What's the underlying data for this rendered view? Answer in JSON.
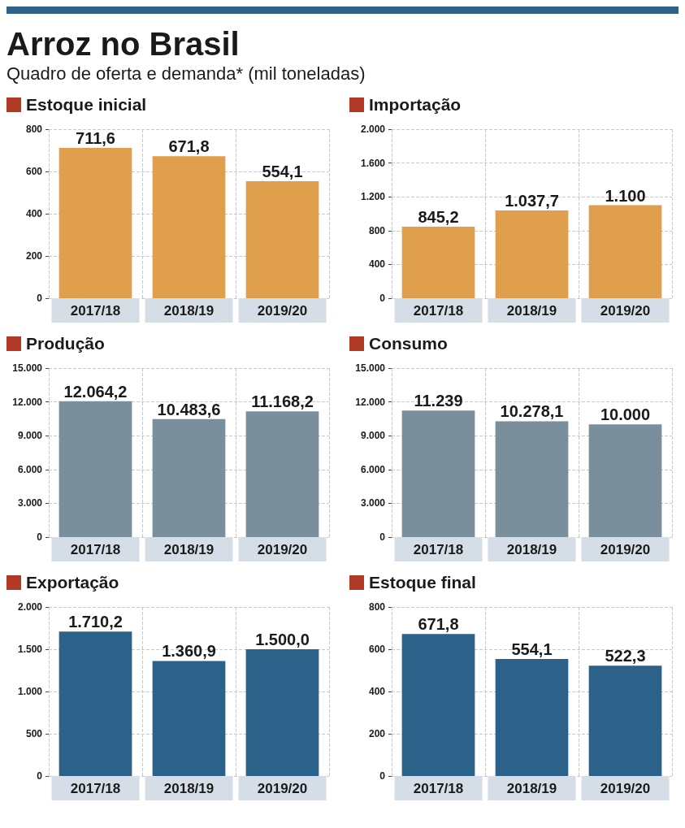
{
  "chart_data": [
    {
      "type": "other",
      "title": "Arroz no Brasil",
      "subtitle": "Quadro de oferta e demanda* (mil toneladas)"
    },
    {
      "type": "bar",
      "title": "Estoque inicial",
      "categories": [
        "2017/18",
        "2018/19",
        "2019/20"
      ],
      "values": [
        711.6,
        671.8,
        554.1
      ],
      "value_labels": [
        "711,6",
        "671,8",
        "554,1"
      ],
      "color": "#e09f4c",
      "ylim": [
        0,
        800
      ],
      "yticks": [
        0,
        200,
        400,
        600,
        800
      ],
      "grid": true
    },
    {
      "type": "bar",
      "title": "Importação",
      "categories": [
        "2017/18",
        "2018/19",
        "2019/20"
      ],
      "values": [
        845.2,
        1037.7,
        1100
      ],
      "value_labels": [
        "845,2",
        "1.037,7",
        "1.100"
      ],
      "color": "#e09f4c",
      "ylim": [
        0,
        2000
      ],
      "yticks": [
        0,
        400,
        800,
        {
          "value": 1200,
          "label": "1.200"
        },
        {
          "value": 1600,
          "label": "1.600"
        },
        {
          "value": 2000,
          "label": "2.000"
        }
      ],
      "grid": true
    },
    {
      "type": "bar",
      "title": "Produção",
      "categories": [
        "2017/18",
        "2018/19",
        "2019/20"
      ],
      "values": [
        12064.2,
        10483.6,
        11168.2
      ],
      "value_labels": [
        "12.064,2",
        "10.483,6",
        "11.168,2"
      ],
      "color": "#7a8f9c",
      "ylim": [
        0,
        15000
      ],
      "yticks": [
        0,
        {
          "value": 3000,
          "label": "3.000"
        },
        {
          "value": 6000,
          "label": "6.000"
        },
        {
          "value": 9000,
          "label": "9.000"
        },
        {
          "value": 12000,
          "label": "12.000"
        },
        {
          "value": 15000,
          "label": "15.000"
        }
      ],
      "grid": true
    },
    {
      "type": "bar",
      "title": "Consumo",
      "categories": [
        "2017/18",
        "2018/19",
        "2019/20"
      ],
      "values": [
        11239,
        10278.1,
        10000
      ],
      "value_labels": [
        "11.239",
        "10.278,1",
        "10.000"
      ],
      "color": "#7a8f9c",
      "ylim": [
        0,
        15000
      ],
      "yticks": [
        0,
        {
          "value": 3000,
          "label": "3.000"
        },
        {
          "value": 6000,
          "label": "6.000"
        },
        {
          "value": 9000,
          "label": "9.000"
        },
        {
          "value": 12000,
          "label": "12.000"
        },
        {
          "value": 15000,
          "label": "15.000"
        }
      ],
      "grid": true
    },
    {
      "type": "bar",
      "title": "Exportação",
      "categories": [
        "2017/18",
        "2018/19",
        "2019/20"
      ],
      "values": [
        1710.2,
        1360.9,
        1500
      ],
      "value_labels": [
        "1.710,2",
        "1.360,9",
        "1.500,0"
      ],
      "color": "#2c6289",
      "ylim": [
        0,
        2000
      ],
      "yticks": [
        0,
        500,
        {
          "value": 1000,
          "label": "1.000"
        },
        {
          "value": 1500,
          "label": "1.500"
        },
        {
          "value": 2000,
          "label": "2.000"
        }
      ],
      "grid": true
    },
    {
      "type": "bar",
      "title": "Estoque final",
      "categories": [
        "2017/18",
        "2018/19",
        "2019/20"
      ],
      "values": [
        671.8,
        554.1,
        522.3
      ],
      "value_labels": [
        "671,8",
        "554,1",
        "522,3"
      ],
      "color": "#2c6289",
      "ylim": [
        0,
        800
      ],
      "yticks": [
        0,
        200,
        400,
        600,
        800
      ],
      "grid": true
    }
  ]
}
